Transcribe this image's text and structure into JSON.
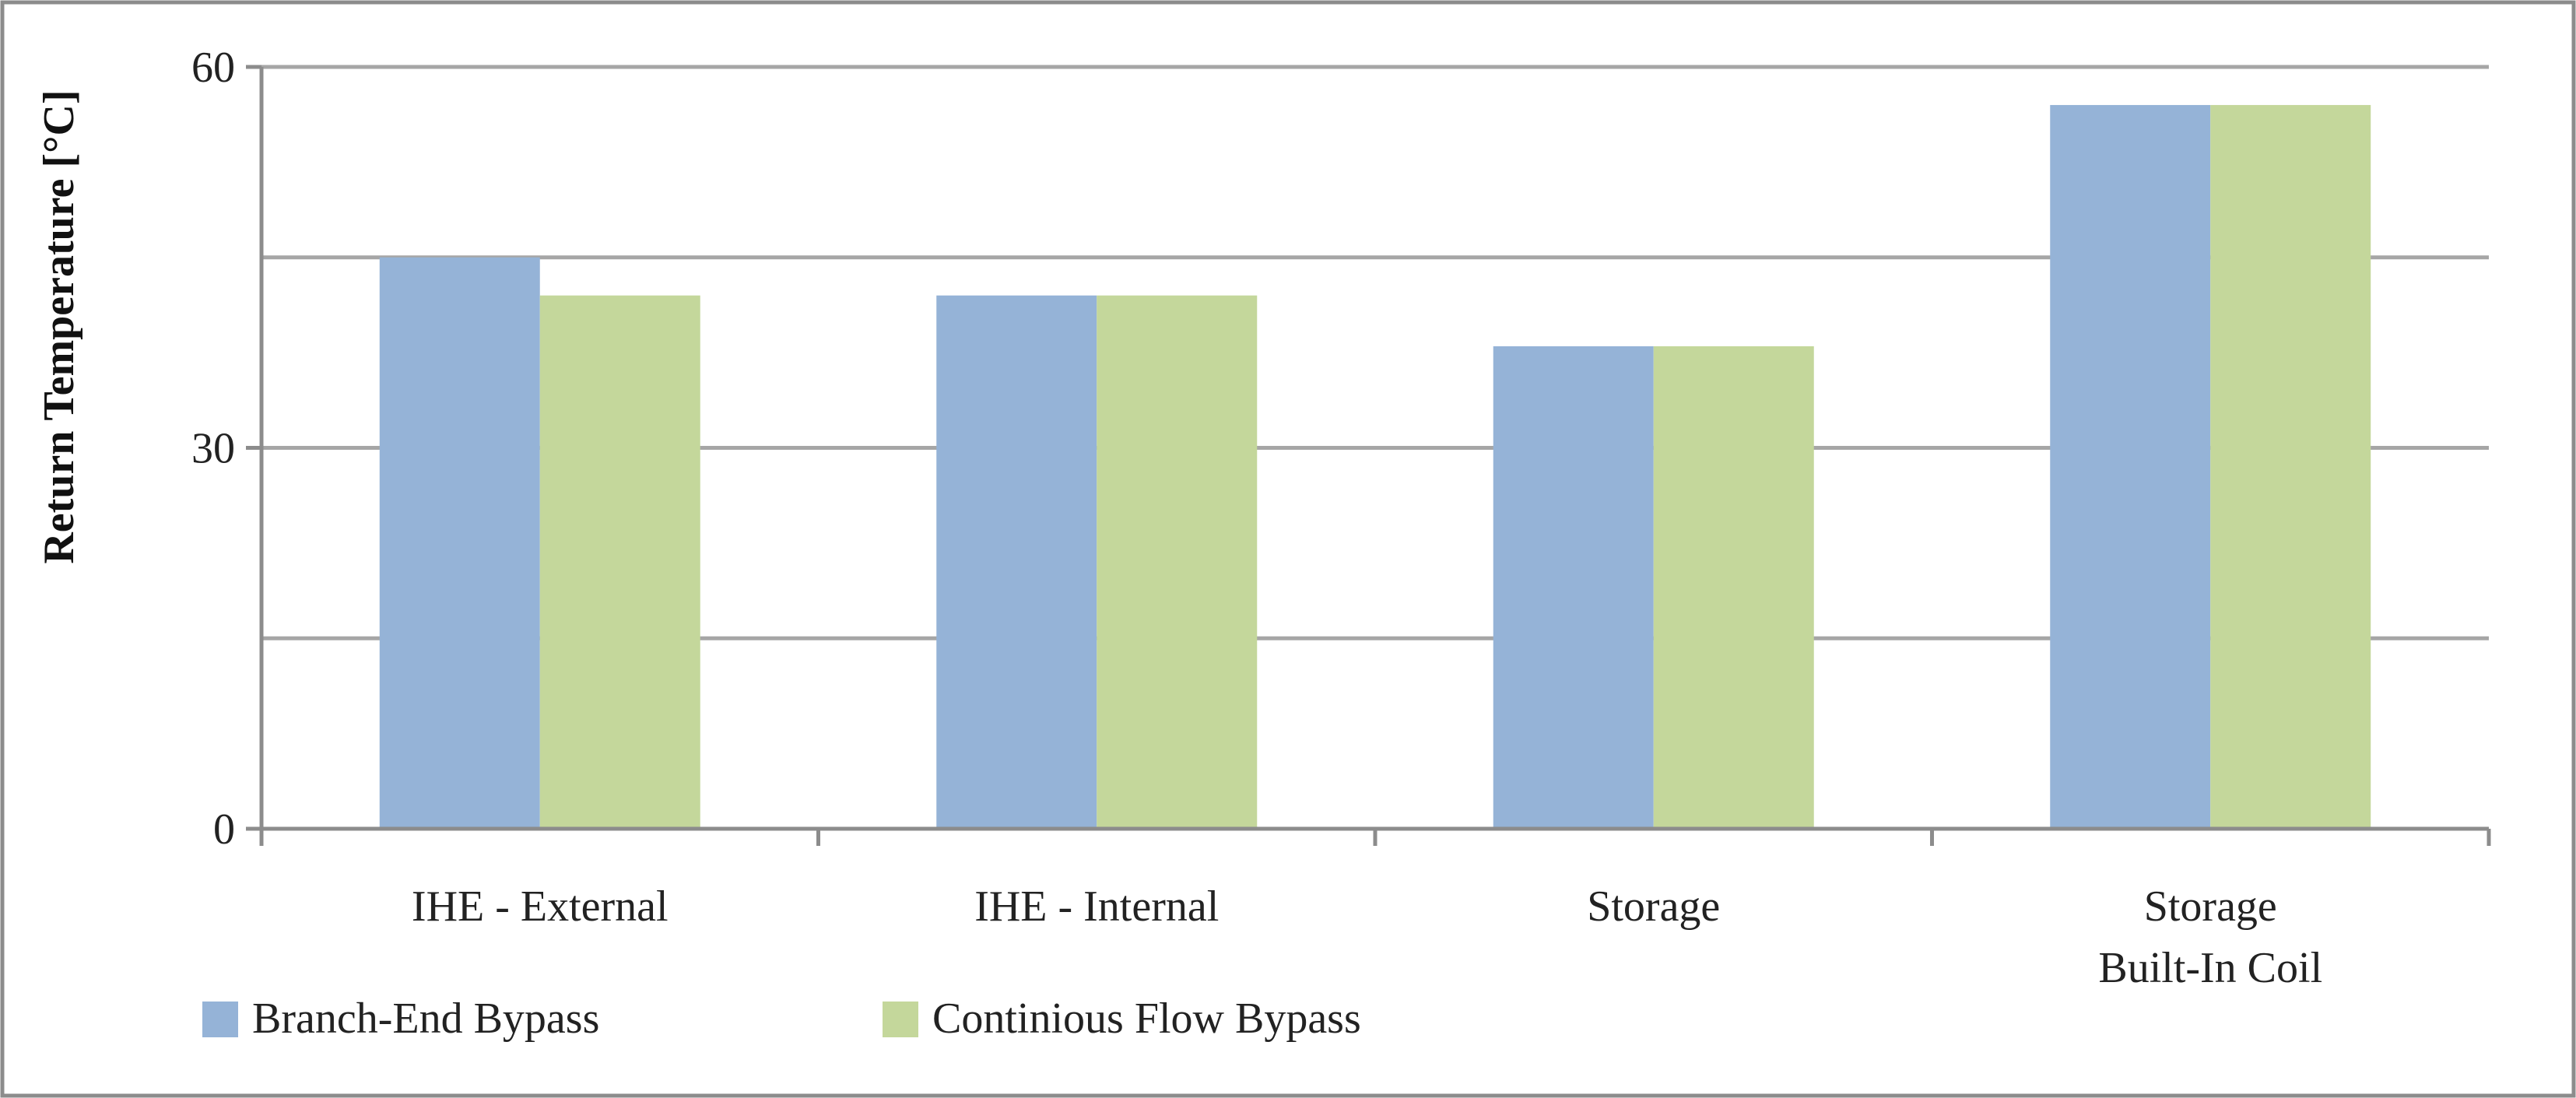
{
  "chart_data": {
    "type": "bar",
    "title": "",
    "xlabel": "",
    "ylabel": "Return Temperature [°C]",
    "ylim": [
      0,
      60
    ],
    "yticks": [
      0,
      30,
      60
    ],
    "grid": "horizontal",
    "legend_position": "bottom-left",
    "categories": [
      [
        "IHE - External"
      ],
      [
        "IHE - Internal"
      ],
      [
        "Storage"
      ],
      [
        "Storage",
        "Built-In Coil"
      ]
    ],
    "series": [
      {
        "name": "Branch-End Bypass",
        "color": "#95b3d7",
        "values": [
          45,
          42,
          38,
          57
        ]
      },
      {
        "name": "Continious Flow Bypass",
        "color": "#c4d79b",
        "values": [
          42,
          42,
          38,
          57
        ]
      }
    ]
  }
}
